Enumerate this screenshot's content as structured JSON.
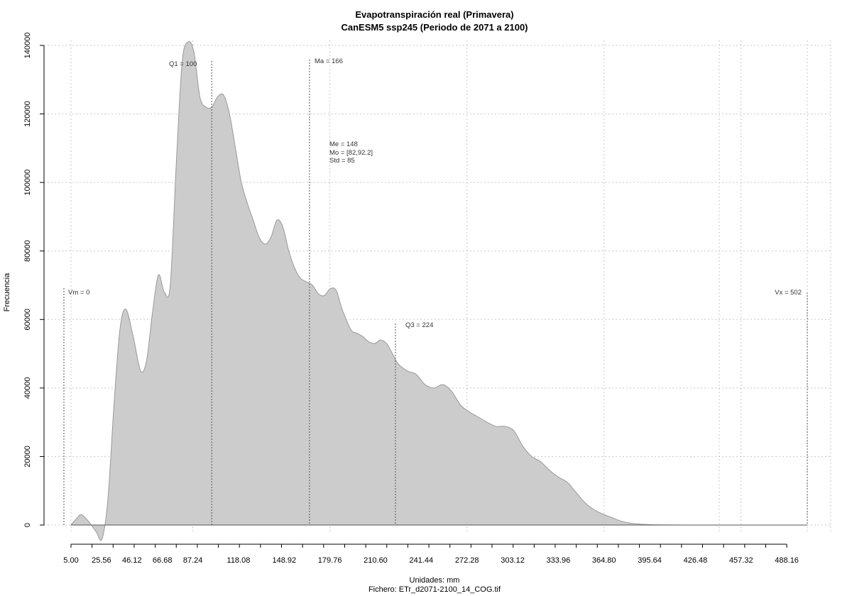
{
  "chart_data": {
    "type": "area",
    "title": "Evapotranspiración real (Primavera)",
    "subtitle": "CanESM5 ssp245 (Periodo de 2071 a 2100)",
    "xlabel": "Unidades: mm",
    "file_caption": "Fichero: ETr_d2071-2100_14_COG.tif",
    "ylabel": "Frecuencia",
    "xlim": [
      5.0,
      502
    ],
    "ylim": [
      0,
      140000
    ],
    "grid": true,
    "fill_color": "#cccccc",
    "line_color": "#999999",
    "x_ticks": [
      "5.00",
      "25.56",
      "46.12",
      "66.68",
      "87.24",
      "118.08",
      "148.92",
      "179.76",
      "210.60",
      "241.44",
      "272.28",
      "303.12",
      "333.96",
      "364.80",
      "395.64",
      "426.48",
      "457.32",
      "488.16"
    ],
    "y_ticks": [
      "0",
      "20000",
      "40000",
      "60000",
      "80000",
      "100000",
      "120000",
      "140000"
    ],
    "x": [
      5,
      9,
      12,
      17,
      22,
      26,
      30,
      34,
      38,
      42,
      47,
      52,
      56,
      60,
      64,
      68,
      72,
      76,
      80,
      84,
      88,
      92,
      96,
      100,
      104,
      108,
      112,
      116,
      120,
      124,
      128,
      132,
      136,
      140,
      144,
      148,
      152,
      156,
      160,
      164,
      168,
      172,
      176,
      180,
      184,
      188,
      194,
      198,
      202,
      206,
      210,
      214,
      218,
      222,
      226,
      232,
      238,
      244,
      250,
      256,
      262,
      268,
      274,
      280,
      286,
      292,
      298,
      304,
      310,
      316,
      322,
      328,
      334,
      340,
      346,
      352,
      358,
      364,
      370,
      376,
      382,
      388,
      394,
      400,
      406,
      412,
      418,
      424,
      430,
      440,
      460,
      480,
      502
    ],
    "y": [
      0,
      2000,
      3000,
      1000,
      -2000,
      -4000,
      8000,
      35000,
      57000,
      63000,
      55000,
      45000,
      48000,
      62000,
      73000,
      68000,
      70000,
      105000,
      135000,
      141000,
      138000,
      125000,
      122000,
      122000,
      125000,
      125500,
      120000,
      110000,
      100000,
      94000,
      89000,
      84000,
      82000,
      84000,
      89000,
      87000,
      80000,
      75000,
      72000,
      71000,
      70000,
      67500,
      67000,
      69000,
      68500,
      63000,
      57000,
      56000,
      55000,
      53500,
      53000,
      54000,
      53000,
      50000,
      47000,
      45000,
      44000,
      41000,
      40000,
      41000,
      39000,
      35000,
      33000,
      31500,
      30000,
      28800,
      28800,
      27500,
      23000,
      20000,
      18500,
      16000,
      14000,
      12500,
      9500,
      6500,
      4500,
      3200,
      2200,
      1200,
      600,
      300,
      150,
      80,
      40,
      20,
      10,
      5,
      3,
      2,
      1,
      0,
      0
    ],
    "annotations": {
      "vm": {
        "label": "Vm = 0",
        "x": 5.0
      },
      "q1": {
        "label": "Q1 = 100",
        "x": 100
      },
      "ma": {
        "label": "Ma = 166",
        "x": 166
      },
      "q3": {
        "label": "Q3 = 224",
        "x": 224
      },
      "vx": {
        "label": "Vx = 502",
        "x": 502
      },
      "stats": [
        "Me = 148",
        "Mo = [82,92.2]",
        "Std = 85"
      ]
    }
  }
}
